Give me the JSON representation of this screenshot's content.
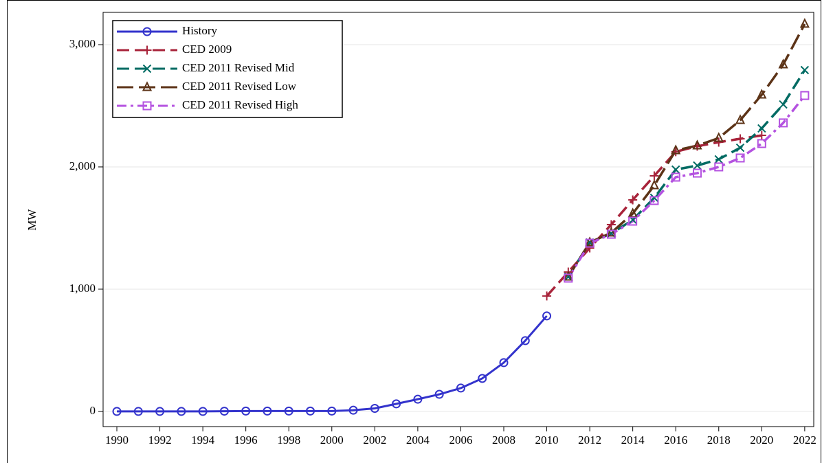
{
  "chart_data": {
    "type": "line",
    "ylabel": "MW",
    "x": [
      1990,
      1991,
      1992,
      1993,
      1994,
      1995,
      1996,
      1997,
      1998,
      1999,
      2000,
      2001,
      2002,
      2003,
      2004,
      2005,
      2006,
      2007,
      2008,
      2009,
      2010,
      2011,
      2012,
      2013,
      2014,
      2015,
      2016,
      2017,
      2018,
      2019,
      2020,
      2021,
      2022
    ],
    "xlim": [
      1989.36,
      2022.42
    ],
    "xticks": [
      1990,
      1992,
      1994,
      1996,
      1998,
      2000,
      2002,
      2004,
      2006,
      2008,
      2010,
      2012,
      2014,
      2016,
      2018,
      2020,
      2022
    ],
    "ylim": [
      -124,
      3264
    ],
    "yticks": [
      0,
      {
        "value": 1000,
        "label": "1,000"
      },
      {
        "value": 2000,
        "label": "2,000"
      },
      {
        "value": 3000,
        "label": "3,000"
      }
    ],
    "grid": true,
    "legend": "upper left",
    "series": [
      {
        "name": "History",
        "color": "#3333cc",
        "marker": "circle",
        "dash": "solid",
        "values": [
          0,
          0,
          0,
          0,
          0,
          2,
          3,
          3,
          3,
          3,
          3,
          10,
          25,
          62,
          100,
          140,
          191,
          270,
          399,
          579,
          781,
          null,
          null,
          null,
          null,
          null,
          null,
          null,
          null,
          null,
          null,
          null,
          null
        ]
      },
      {
        "name": "CED 2009",
        "color": "#a8233a",
        "marker": "plus",
        "dash": "dash",
        "values": [
          null,
          null,
          null,
          null,
          null,
          null,
          null,
          null,
          null,
          null,
          null,
          null,
          null,
          null,
          null,
          null,
          null,
          null,
          null,
          null,
          944,
          1140,
          1337,
          1528,
          1730,
          1927,
          2124,
          2169,
          2202,
          2230,
          2258,
          null,
          null
        ]
      },
      {
        "name": "CED 2011 Revised Mid",
        "color": "#006b63",
        "marker": "x",
        "dash": "dash",
        "values": [
          null,
          null,
          null,
          null,
          null,
          null,
          null,
          null,
          null,
          null,
          null,
          null,
          null,
          null,
          null,
          null,
          null,
          null,
          null,
          null,
          null,
          1101,
          1382,
          1455,
          1567,
          1747,
          1978,
          2011,
          2062,
          2157,
          2315,
          2511,
          2792
        ]
      },
      {
        "name": "CED 2011 Revised Low",
        "color": "#5c3317",
        "marker": "triangle",
        "dash": "longdash",
        "values": [
          null,
          null,
          null,
          null,
          null,
          null,
          null,
          null,
          null,
          null,
          null,
          null,
          null,
          null,
          null,
          null,
          null,
          null,
          null,
          null,
          null,
          1101,
          1382,
          1461,
          1618,
          1848,
          2135,
          2174,
          2236,
          2382,
          2590,
          2837,
          3169
        ]
      },
      {
        "name": "CED 2011 Revised High",
        "color": "#b452e0",
        "marker": "square",
        "dash": "dashdot",
        "values": [
          null,
          null,
          null,
          null,
          null,
          null,
          null,
          null,
          null,
          null,
          null,
          null,
          null,
          null,
          null,
          null,
          null,
          null,
          null,
          null,
          null,
          1090,
          1376,
          1449,
          1556,
          1725,
          1916,
          1949,
          2000,
          2073,
          2191,
          2360,
          2584
        ]
      }
    ]
  }
}
